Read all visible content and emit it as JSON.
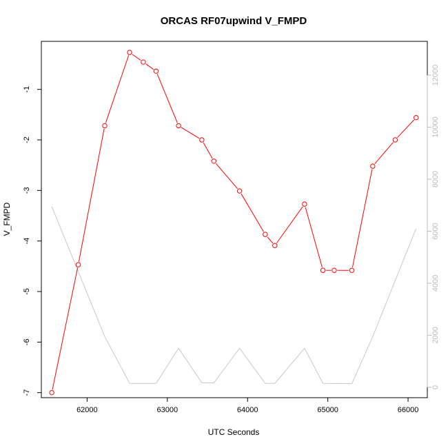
{
  "chart_data": {
    "type": "line",
    "title": "ORCAS RF07upwind V_FMPD",
    "xlabel": "UTC Seconds",
    "ylabel": "V_FMPD",
    "xlim": [
      61430,
      66240
    ],
    "ylim": [
      -7.1,
      -0.05
    ],
    "y2lim": [
      -400,
      13300
    ],
    "x_ticks": [
      62000,
      63000,
      64000,
      65000,
      66000
    ],
    "y_ticks": [
      -7,
      -6,
      -5,
      -4,
      -3,
      -2,
      -1
    ],
    "y2_ticks": [
      0,
      2000,
      4000,
      6000,
      8000,
      10000,
      12000
    ],
    "grid": false,
    "series": [
      {
        "role": "primary",
        "color": "#ff0000",
        "marker": "open-circle",
        "points": [
          [
            61560,
            -7.0
          ],
          [
            61890,
            -4.47
          ],
          [
            62220,
            -1.72
          ],
          [
            62530,
            -0.27
          ],
          [
            62700,
            -0.46
          ],
          [
            62860,
            -0.64
          ],
          [
            63140,
            -1.72
          ],
          [
            63430,
            -2.0
          ],
          [
            63580,
            -2.42
          ],
          [
            63900,
            -3.01
          ],
          [
            64220,
            -3.87
          ],
          [
            64340,
            -4.09
          ],
          [
            64710,
            -3.27
          ],
          [
            64940,
            -4.58
          ],
          [
            65080,
            -4.58
          ],
          [
            65300,
            -4.58
          ],
          [
            65560,
            -2.52
          ],
          [
            65840,
            -2.0
          ],
          [
            66100,
            -1.56
          ]
        ]
      },
      {
        "role": "secondary",
        "axis": "right",
        "color": "#c8c8c8",
        "marker": "none",
        "points": [
          [
            61560,
            6950
          ],
          [
            62220,
            1950
          ],
          [
            62530,
            150
          ],
          [
            62860,
            150
          ],
          [
            63140,
            1500
          ],
          [
            63430,
            170
          ],
          [
            63580,
            170
          ],
          [
            63900,
            1500
          ],
          [
            64220,
            150
          ],
          [
            64340,
            150
          ],
          [
            64710,
            1500
          ],
          [
            64940,
            150
          ],
          [
            65300,
            140
          ],
          [
            65560,
            1950
          ],
          [
            66100,
            6100
          ]
        ]
      }
    ]
  }
}
